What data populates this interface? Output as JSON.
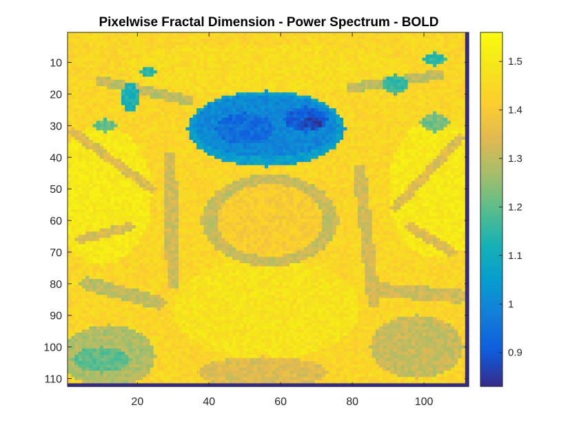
{
  "chart_data": {
    "type": "heatmap",
    "title": "Pixelwise Fractal Dimension - Power Spectrum - BOLD",
    "xlabel": "",
    "ylabel": "",
    "xlim": [
      0.5,
      112.5
    ],
    "ylim": [
      0.5,
      112.5
    ],
    "y_reversed": true,
    "grid": false,
    "colormap": "parula",
    "clim": [
      0.83,
      1.56
    ],
    "x_ticks": [
      20,
      40,
      60,
      80,
      100
    ],
    "y_ticks": [
      10,
      20,
      30,
      40,
      50,
      60,
      70,
      80,
      90,
      100,
      110
    ],
    "colorbar": {
      "location": "right",
      "ticks": [
        0.9,
        1,
        1.1,
        1.2,
        1.3,
        1.4,
        1.5
      ],
      "tick_labels": [
        "0.9",
        "1",
        "1.1",
        "1.2",
        "1.3",
        "1.4",
        "1.5"
      ]
    },
    "grid_size": [
      112,
      112
    ],
    "background_value": 1.44,
    "regions": [
      {
        "label": "bright outer left",
        "shape": "ellipse",
        "cx": 10,
        "cy": 52,
        "rx": 14,
        "ry": 22,
        "value": 1.5
      },
      {
        "label": "bright outer right",
        "shape": "ellipse",
        "cx": 104,
        "cy": 50,
        "rx": 14,
        "ry": 22,
        "value": 1.5
      },
      {
        "label": "bright lower center",
        "shape": "ellipse",
        "cx": 56,
        "cy": 88,
        "rx": 26,
        "ry": 16,
        "value": 1.48
      },
      {
        "label": "bright upper band",
        "shape": "ellipse",
        "cx": 56,
        "cy": 12,
        "rx": 40,
        "ry": 8,
        "value": 1.46
      },
      {
        "label": "central ellipse",
        "shape": "ellipse",
        "cx": 57,
        "cy": 60,
        "rx": 17,
        "ry": 13,
        "value": 1.41
      },
      {
        "label": "central ring",
        "shape": "ring",
        "cx": 57,
        "cy": 60,
        "rx": 17,
        "ry": 13,
        "width": 1.6,
        "value": 1.31
      },
      {
        "label": "left strand",
        "shape": "line",
        "x1": 29,
        "y1": 40,
        "x2": 30,
        "y2": 80,
        "width": 1.8,
        "value": 1.32
      },
      {
        "label": "right strand",
        "shape": "line",
        "x1": 82,
        "y1": 44,
        "x2": 86,
        "y2": 86,
        "width": 1.8,
        "value": 1.32
      },
      {
        "label": "left arc",
        "shape": "line",
        "x1": 2,
        "y1": 32,
        "x2": 24,
        "y2": 50,
        "width": 1.4,
        "value": 1.34
      },
      {
        "label": "right arc",
        "shape": "line",
        "x1": 110,
        "y1": 34,
        "x2": 92,
        "y2": 56,
        "width": 1.4,
        "value": 1.34
      },
      {
        "label": "left lower arc",
        "shape": "line",
        "x1": 4,
        "y1": 66,
        "x2": 18,
        "y2": 62,
        "width": 1.4,
        "value": 1.33
      },
      {
        "label": "right lower arc",
        "shape": "line",
        "x1": 96,
        "y1": 62,
        "x2": 108,
        "y2": 70,
        "width": 1.4,
        "value": 1.34
      },
      {
        "label": "upper left strand",
        "shape": "line",
        "x1": 10,
        "y1": 16,
        "x2": 34,
        "y2": 22,
        "width": 1.6,
        "value": 1.3
      },
      {
        "label": "upper right strand",
        "shape": "line",
        "x1": 80,
        "y1": 18,
        "x2": 104,
        "y2": 14,
        "width": 1.6,
        "value": 1.3
      },
      {
        "label": "lower left band",
        "shape": "line",
        "x1": 6,
        "y1": 80,
        "x2": 26,
        "y2": 86,
        "width": 2.2,
        "value": 1.3
      },
      {
        "label": "lower right band",
        "shape": "line",
        "x1": 88,
        "y1": 82,
        "x2": 110,
        "y2": 84,
        "width": 2.2,
        "value": 1.32
      },
      {
        "label": "lower left mass",
        "shape": "ellipse",
        "cx": 12,
        "cy": 103,
        "rx": 13,
        "ry": 10,
        "value": 1.28
      },
      {
        "label": "lower left core",
        "shape": "ellipse",
        "cx": 10,
        "cy": 104,
        "rx": 8,
        "ry": 4,
        "value": 1.2
      },
      {
        "label": "lower right mass",
        "shape": "ellipse",
        "cx": 98,
        "cy": 100,
        "rx": 13,
        "ry": 10,
        "value": 1.31
      },
      {
        "label": "lower center mass",
        "shape": "ellipse",
        "cx": 55,
        "cy": 108,
        "rx": 18,
        "ry": 5,
        "value": 1.34
      },
      {
        "label": "upper left spot a",
        "shape": "ellipse",
        "cx": 18,
        "cy": 21,
        "rx": 2.5,
        "ry": 4.5,
        "value": 1.12
      },
      {
        "label": "upper left spot b",
        "shape": "ellipse",
        "cx": 11,
        "cy": 30,
        "rx": 3,
        "ry": 2,
        "value": 1.2
      },
      {
        "label": "upper left spot c",
        "shape": "ellipse",
        "cx": 23,
        "cy": 13,
        "rx": 2.5,
        "ry": 1.5,
        "value": 1.14
      },
      {
        "label": "upper right spot a",
        "shape": "ellipse",
        "cx": 92,
        "cy": 17,
        "rx": 3.5,
        "ry": 3,
        "value": 1.16
      },
      {
        "label": "upper right spot b",
        "shape": "ellipse",
        "cx": 103,
        "cy": 9,
        "rx": 3,
        "ry": 2,
        "value": 1.15
      },
      {
        "label": "upper right spot c",
        "shape": "ellipse",
        "cx": 103,
        "cy": 29,
        "rx": 4,
        "ry": 3,
        "value": 1.22
      },
      {
        "label": "blue mass halo",
        "shape": "ellipse",
        "cx": 56,
        "cy": 31,
        "rx": 22,
        "ry": 12,
        "value": 1.06
      },
      {
        "label": "blue mass",
        "shape": "ellipse",
        "cx": 56,
        "cy": 30,
        "rx": 20,
        "ry": 10,
        "value": 1.0
      },
      {
        "label": "dark lobe left",
        "shape": "ellipse",
        "cx": 50,
        "cy": 31,
        "rx": 8,
        "ry": 5,
        "value": 0.94
      },
      {
        "label": "dark lobe right",
        "shape": "ellipse",
        "cx": 67,
        "cy": 28,
        "rx": 6,
        "ry": 4,
        "value": 0.91
      },
      {
        "label": "darkest spot",
        "shape": "ellipse",
        "cx": 69,
        "cy": 29,
        "rx": 2.5,
        "ry": 2,
        "value": 0.86
      }
    ]
  }
}
